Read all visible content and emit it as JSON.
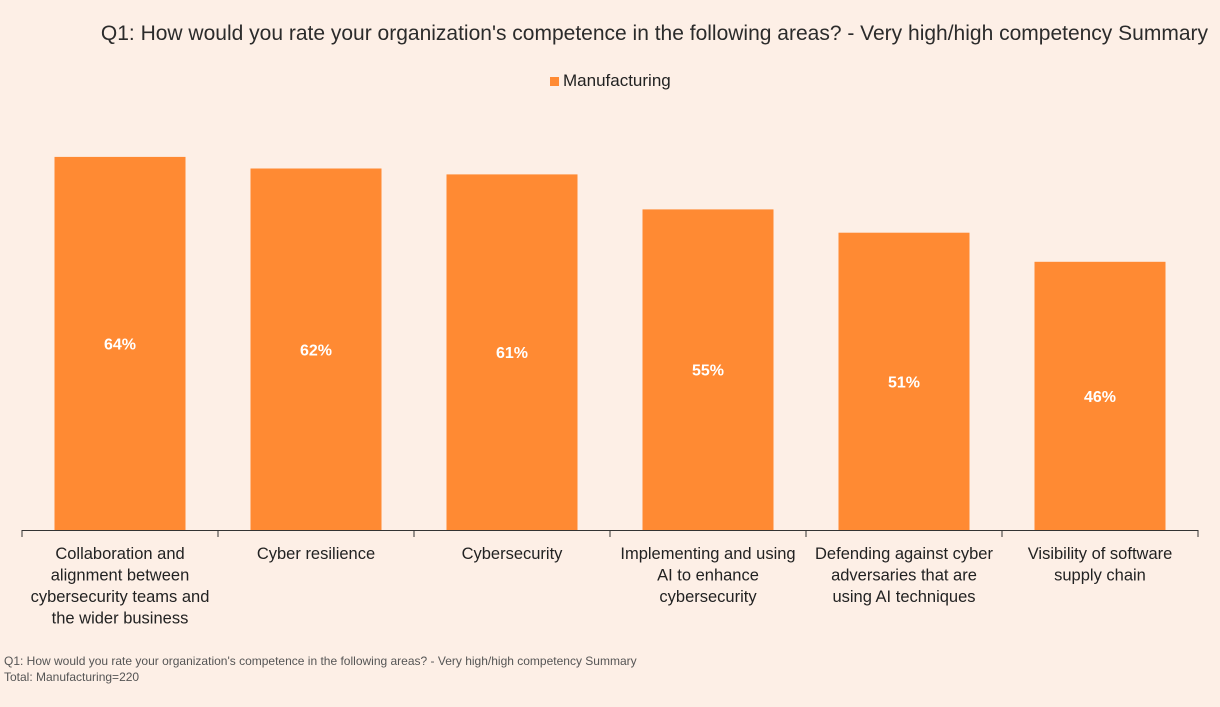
{
  "title": "Q1: How would you rate your organization's competence in the following areas? - Very high/high competency Summary",
  "legend": {
    "label": "Manufacturing"
  },
  "footnotes": {
    "question": "Q1: How would you rate your organization's competence in the following areas? - Very high/high competency Summary",
    "total": "Total:  Manufacturing=220"
  },
  "colors": {
    "bar": "#FF8A33",
    "background": "#FDEFE6",
    "axis": "#333333",
    "label_inside": "#FFFFFF"
  },
  "chart_data": {
    "type": "bar",
    "title": "Q1: How would you rate your organization's competence in the following areas? - Very high/high competency Summary",
    "xlabel": "",
    "ylabel": "",
    "ylim": [
      0,
      70
    ],
    "grid": false,
    "legend_position": "top-center",
    "categories": [
      [
        "Collaboration and",
        "alignment between",
        "cybersecurity teams and",
        "the wider business"
      ],
      [
        "Cyber resilience"
      ],
      [
        "Cybersecurity"
      ],
      [
        "Implementing and using",
        "AI to enhance",
        "cybersecurity"
      ],
      [
        "Defending against cyber",
        "adversaries that are",
        "using AI techniques"
      ],
      [
        "Visibility of software",
        "supply chain"
      ]
    ],
    "series": [
      {
        "name": "Manufacturing",
        "values": [
          64,
          62,
          61,
          55,
          51,
          46
        ],
        "labels": [
          "64%",
          "62%",
          "61%",
          "55%",
          "51%",
          "46%"
        ]
      }
    ]
  }
}
